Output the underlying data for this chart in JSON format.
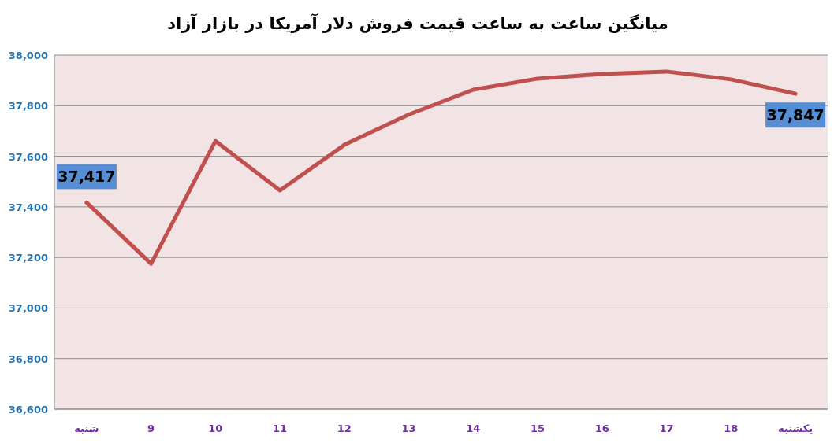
{
  "chart_data": {
    "type": "line",
    "title": "میانگین ساعت به ساعت قیمت فروش دلار آمریکا در بازار آزاد",
    "categories": [
      "شنبه",
      "9",
      "10",
      "11",
      "12",
      "13",
      "14",
      "15",
      "16",
      "17",
      "18",
      "یکشنبه"
    ],
    "series": [
      {
        "color": "#c0504d",
        "values": [
          37417,
          37175,
          37660,
          37465,
          37645,
          37765,
          37863,
          37907,
          37925,
          37935,
          37904,
          37847
        ],
        "value_labels": [
          "37,417",
          null,
          null,
          null,
          null,
          null,
          null,
          null,
          null,
          null,
          null,
          "37,847"
        ]
      }
    ],
    "ylim": [
      36600,
      38000
    ],
    "yticks": [
      {
        "value": 36600,
        "label": "36,600"
      },
      {
        "value": 36800,
        "label": "36,800"
      },
      {
        "value": 37000,
        "label": "37,000"
      },
      {
        "value": 37200,
        "label": "37,200"
      },
      {
        "value": 37400,
        "label": "37,400"
      },
      {
        "value": 37600,
        "label": "37,600"
      },
      {
        "value": 37800,
        "label": "37,800"
      },
      {
        "value": 38000,
        "label": "38,000"
      }
    ],
    "grid": "y",
    "marker": "none",
    "line_style": "solid"
  }
}
